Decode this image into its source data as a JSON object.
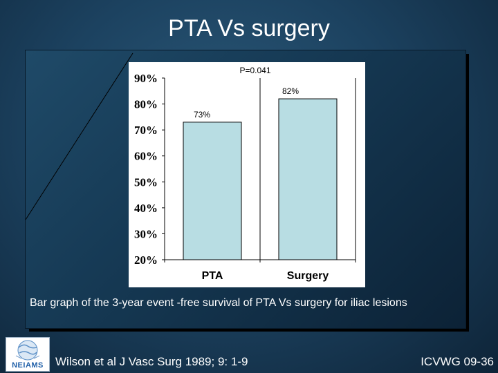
{
  "slide": {
    "title": "PTA Vs surgery",
    "caption": "Bar graph of the 3-year event -free survival of PTA Vs surgery for iliac lesions",
    "reference": "Wilson et al  J Vasc Surg 1989; 9: 1-9",
    "code": "ICVWG 09-36",
    "logo_text": "NEIAMS"
  },
  "colors": {
    "bar_fill": "#b8dde3",
    "plot_bg": "#ffffff",
    "text": "#000000"
  },
  "chart_data": {
    "type": "bar",
    "title": "",
    "annotation": "P=0.041",
    "categories": [
      "PTA",
      "Surgery"
    ],
    "values": [
      73,
      82
    ],
    "value_labels": [
      "73%",
      "82%"
    ],
    "ylim": [
      20,
      90
    ],
    "yticks": [
      20,
      30,
      40,
      50,
      60,
      70,
      80,
      90
    ],
    "ytick_labels": [
      "20%",
      "30%",
      "40%",
      "50%",
      "60%",
      "70%",
      "80%",
      "90%"
    ],
    "xlabel": "",
    "ylabel": "",
    "grid": "vertical-category-lines"
  }
}
